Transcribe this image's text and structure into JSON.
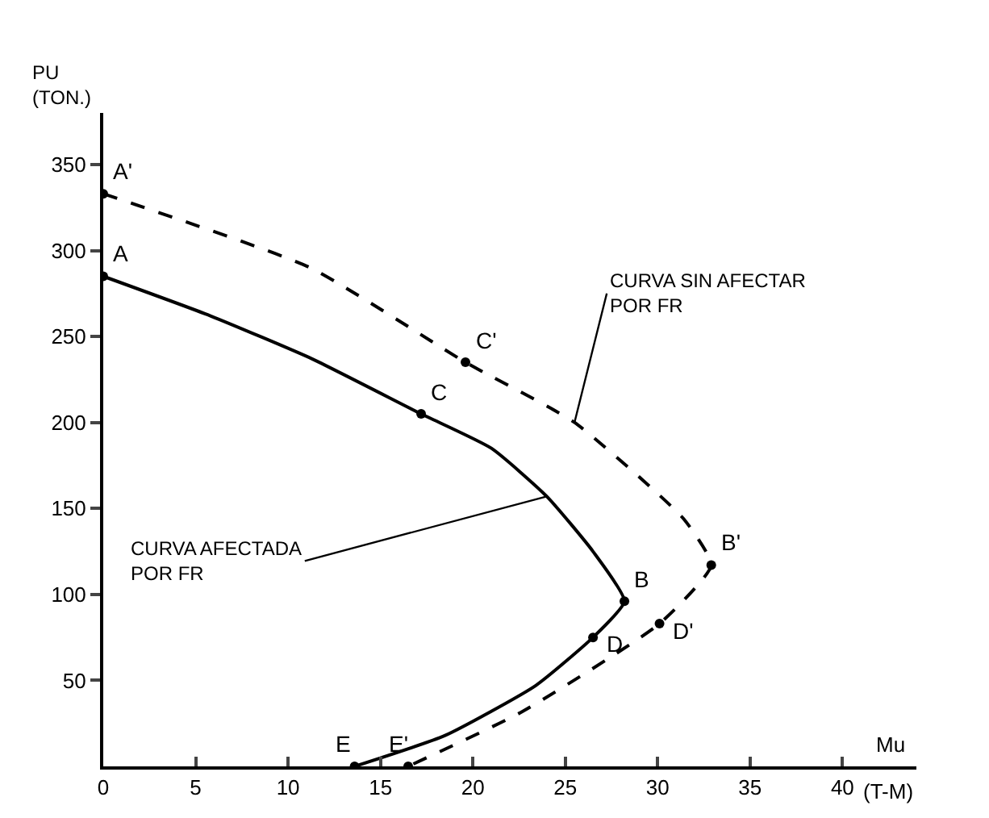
{
  "chart_data": {
    "type": "line",
    "xlabel": "Mu\n(T-M)",
    "ylabel": "PU\n(TON.)",
    "xlim": [
      0,
      44
    ],
    "xticks": [
      0,
      5,
      10,
      15,
      20,
      25,
      30,
      35,
      40
    ],
    "ylim": [
      0,
      380
    ],
    "yticks": [
      50,
      100,
      150,
      200,
      250,
      300,
      350
    ],
    "series": [
      {
        "color": "#000000",
        "line_style": "solid",
        "x": [
          0,
          5.8,
          11.3,
          17.2,
          21,
          24,
          26.5,
          28.2,
          26.5,
          23.4,
          18.5,
          13.6
        ],
        "values": [
          285,
          262,
          237,
          205,
          185,
          157,
          125,
          96,
          75,
          47,
          18,
          0
        ]
      },
      {
        "color": "#000000",
        "line_style": "dashed",
        "x": [
          0,
          11.2,
          19.6,
          25.5,
          31.4,
          32.9,
          30.1,
          22.7,
          16.5
        ],
        "values": [
          333,
          290,
          235,
          200,
          144,
          117,
          83,
          32,
          0
        ]
      }
    ],
    "annotations": [
      {
        "text": "A",
        "x": 0,
        "y": 285
      },
      {
        "text": "A'",
        "x": 0,
        "y": 333
      },
      {
        "text": "C",
        "x": 17.2,
        "y": 205
      },
      {
        "text": "C'",
        "x": 19.6,
        "y": 235
      },
      {
        "text": "B",
        "x": 28.2,
        "y": 96
      },
      {
        "text": "B'",
        "x": 32.9,
        "y": 117
      },
      {
        "text": "D",
        "x": 26.5,
        "y": 75
      },
      {
        "text": "D'",
        "x": 30.1,
        "y": 83
      },
      {
        "text": "E",
        "x": 13.6,
        "y": 0
      },
      {
        "text": "E'",
        "x": 16.5,
        "y": 0
      },
      {
        "text": "CURVA AFECTADA\nPOR FR",
        "x": 24,
        "y": 157
      },
      {
        "text": "CURVA SIN AFECTAR\nPOR FR",
        "x": 25.5,
        "y": 200
      }
    ]
  }
}
